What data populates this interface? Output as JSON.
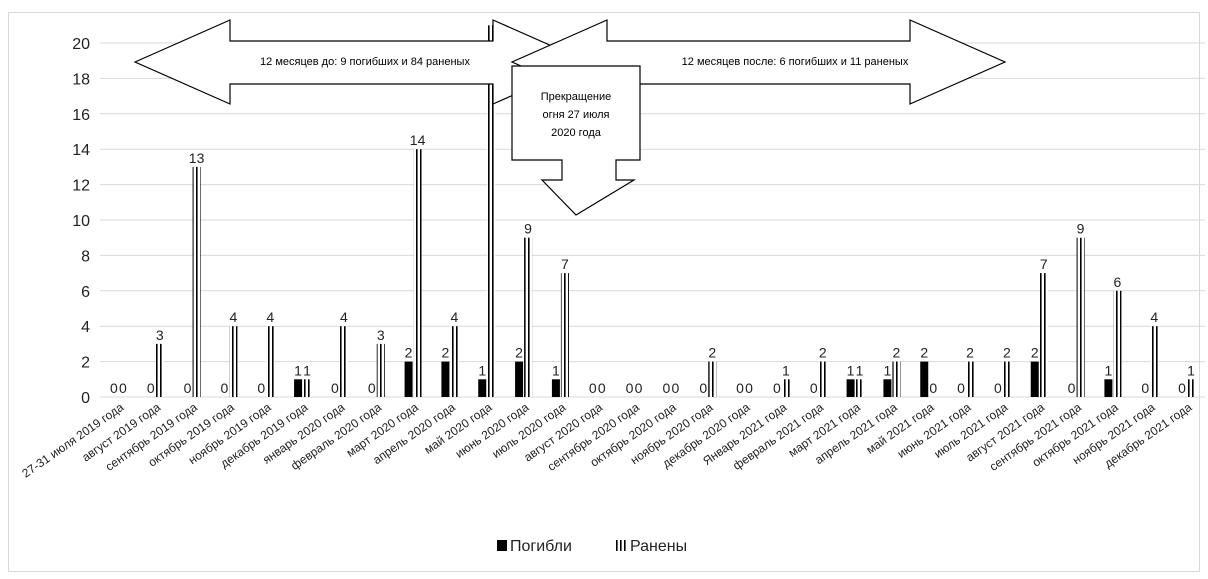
{
  "chart_data": {
    "type": "bar",
    "categories": [
      "27-31 июля 2019 года",
      "август 2019 года",
      "сентябрь 2019 года",
      "октябрь 2019 года",
      "ноябрь 2019 года",
      "декабрь 2019 года",
      "январь 2020 года",
      "февраль 2020 года",
      "март 2020 года",
      "апрель 2020 года",
      "май 2020 года",
      "июнь 2020 года",
      "июль 2020 года",
      "август 2020 года",
      "сентябрь 2020 года",
      "октябрь 2020 года",
      "ноябрь 2020 года",
      "декабрь 2020 года",
      "Январь 2021 года",
      "февраль 2021 года",
      "март 2021 года",
      "апрель 2021 года",
      "май 2021 года",
      "июнь 2021 года",
      "июль 2021 года",
      "август 2021 года",
      "сентябрь 2021 года",
      "октябрь 2021 года",
      "ноябрь 2021 года",
      "декабрь 2021 года"
    ],
    "series": [
      {
        "name": "Погибли",
        "values": [
          0,
          0,
          0,
          0,
          0,
          1,
          0,
          0,
          2,
          2,
          1,
          2,
          1,
          0,
          0,
          0,
          0,
          0,
          0,
          0,
          1,
          1,
          2,
          0,
          0,
          2,
          0,
          1,
          0,
          0
        ]
      },
      {
        "name": "Ранены",
        "values": [
          0,
          3,
          13,
          4,
          4,
          1,
          4,
          3,
          14,
          4,
          21,
          9,
          7,
          0,
          0,
          0,
          2,
          0,
          1,
          2,
          1,
          2,
          0,
          2,
          2,
          7,
          9,
          6,
          4,
          1
        ]
      }
    ],
    "ylim": [
      0,
      20
    ],
    "yticks": [
      0,
      2,
      4,
      6,
      8,
      10,
      12,
      14,
      16,
      18,
      20
    ],
    "grid": true,
    "legend": "bottom",
    "annotations": {
      "left_arrow": "12 месяцев до: 9 погибших и 84 раненых",
      "right_arrow": "12 месяцев после: 6 погибших и 11 раненых",
      "ceasefire_box": "Прекращение огня 27 июля 2020 года"
    },
    "colors": {
      "killed": "#000000",
      "wounded": "#000000",
      "grid": "#d9d9d9",
      "frame": "#d9d9d9"
    }
  }
}
